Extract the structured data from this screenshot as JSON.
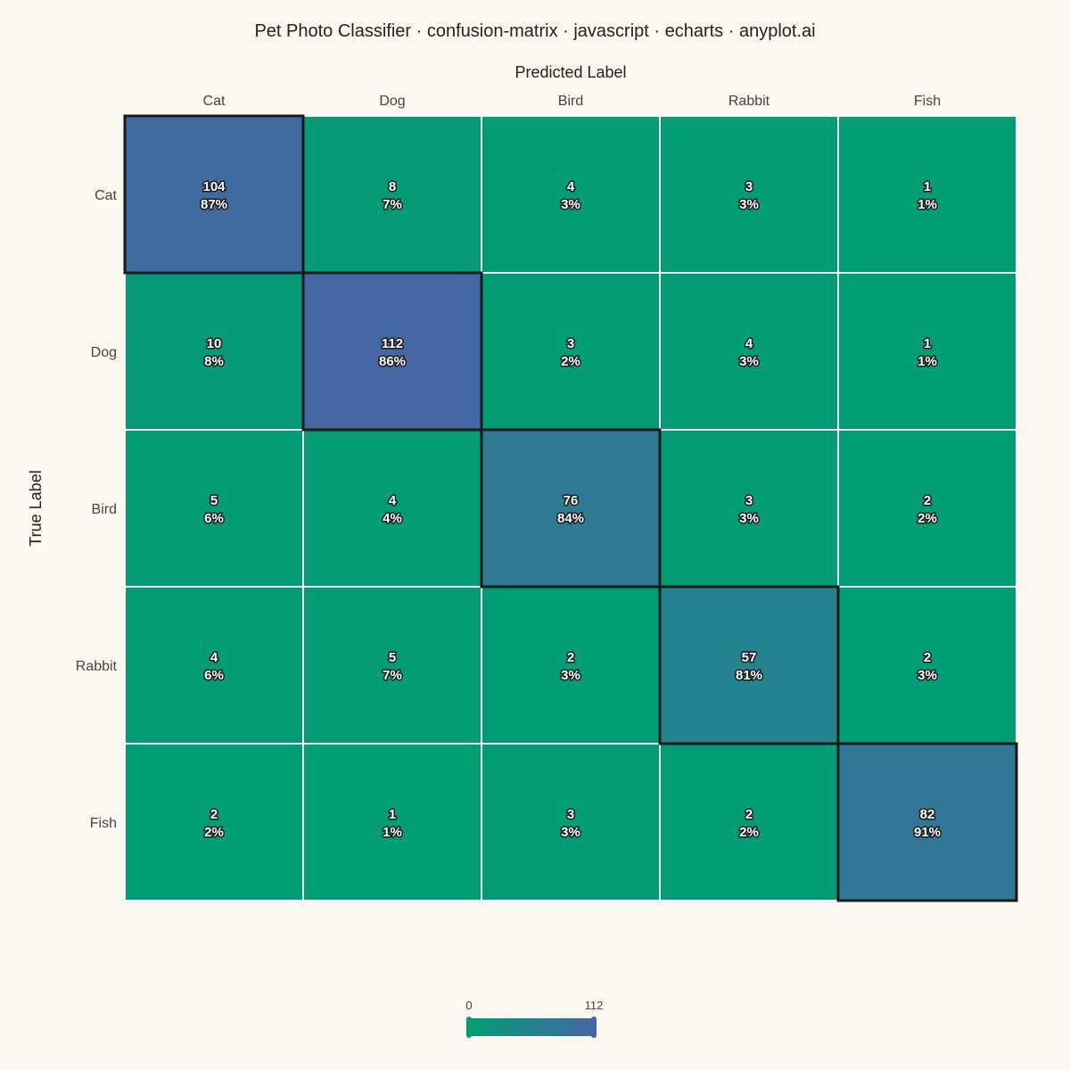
{
  "chart_data": {
    "type": "heatmap",
    "title": "Pet Photo Classifier · confusion-matrix · javascript · echarts · anyplot.ai",
    "xlabel": "Predicted Label",
    "ylabel": "True Label",
    "categories_x": [
      "Cat",
      "Dog",
      "Bird",
      "Rabbit",
      "Fish"
    ],
    "categories_y": [
      "Cat",
      "Dog",
      "Bird",
      "Rabbit",
      "Fish"
    ],
    "values": [
      [
        104,
        8,
        4,
        3,
        1
      ],
      [
        10,
        112,
        3,
        4,
        1
      ],
      [
        5,
        4,
        76,
        3,
        2
      ],
      [
        4,
        5,
        2,
        57,
        2
      ],
      [
        2,
        1,
        3,
        2,
        82
      ]
    ],
    "percent_labels": [
      [
        "87%",
        "7%",
        "3%",
        "3%",
        "1%"
      ],
      [
        "8%",
        "86%",
        "2%",
        "3%",
        "1%"
      ],
      [
        "6%",
        "4%",
        "84%",
        "3%",
        "2%"
      ],
      [
        "6%",
        "7%",
        "3%",
        "81%",
        "3%"
      ],
      [
        "2%",
        "1%",
        "3%",
        "2%",
        "91%"
      ]
    ],
    "color_range": [
      0,
      112
    ],
    "color_range_labels": [
      "0",
      "112"
    ],
    "colors": {
      "low": "#009E73",
      "high": "#4467A3",
      "diagonal_border": "#1a1a1a",
      "grid": "#ffffff"
    },
    "legend_placement": "bottom-center"
  }
}
